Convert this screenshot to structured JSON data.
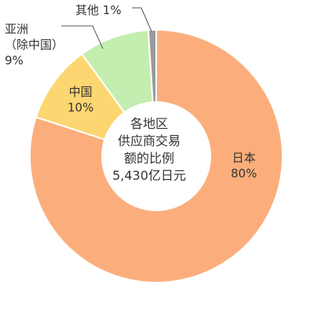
{
  "chart_data": {
    "type": "pie",
    "variant": "donut",
    "center_label": [
      "各地区",
      "供应商交易",
      "额的比例",
      "5,430亿日元"
    ],
    "slices": [
      {
        "name": "日本",
        "value": 80,
        "value_label": "80%",
        "color": "#FBAE7C"
      },
      {
        "name": "中国",
        "value": 10,
        "value_label": "10%",
        "color": "#FCD670"
      },
      {
        "name_lines": [
          "亚洲",
          "（除中国）"
        ],
        "value": 9,
        "value_label": "9%",
        "color": "#C4EDB0"
      },
      {
        "name": "其他",
        "value": 1,
        "value_label": "1%",
        "color": "#9A9A9A"
      }
    ]
  }
}
